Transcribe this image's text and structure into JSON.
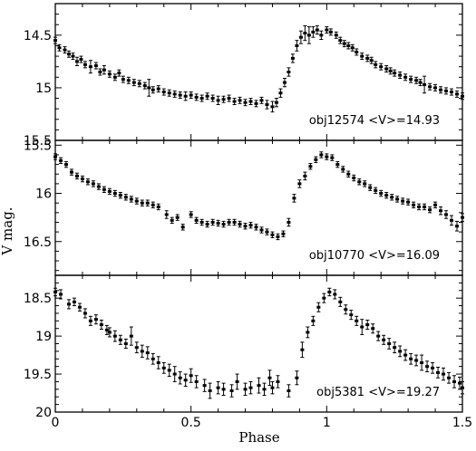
{
  "chart_data": {
    "type": "scatter",
    "xlabel": "Phase",
    "ylabel": "V mag.",
    "xlim": [
      0,
      1.5
    ],
    "xticks": [
      0,
      0.5,
      1,
      1.5
    ],
    "xtick_labels": [
      "0",
      "0.5",
      "1",
      "1.5"
    ],
    "panels": [
      {
        "annotation": "obj12574 <V>=14.93",
        "ylim": [
          15.5,
          14.2
        ],
        "yticks": [
          14.5,
          15,
          15.5
        ],
        "ytick_labels": [
          "14.5",
          "15",
          "15.5"
        ],
        "x": [
          0.0,
          0.015,
          0.035,
          0.05,
          0.065,
          0.08,
          0.095,
          0.11,
          0.13,
          0.15,
          0.165,
          0.18,
          0.2,
          0.22,
          0.235,
          0.25,
          0.27,
          0.29,
          0.31,
          0.33,
          0.345,
          0.36,
          0.38,
          0.4,
          0.42,
          0.44,
          0.46,
          0.48,
          0.5,
          0.52,
          0.54,
          0.56,
          0.58,
          0.6,
          0.62,
          0.64,
          0.66,
          0.68,
          0.7,
          0.72,
          0.74,
          0.76,
          0.78,
          0.8,
          0.815,
          0.83,
          0.845,
          0.86,
          0.875,
          0.89,
          0.905,
          0.92,
          0.935,
          0.95,
          0.965,
          0.98,
          1.0,
          1.015,
          1.035,
          1.05,
          1.065,
          1.08,
          1.095,
          1.11,
          1.13,
          1.15,
          1.165,
          1.18,
          1.2,
          1.22,
          1.235,
          1.25,
          1.27,
          1.29,
          1.31,
          1.33,
          1.345,
          1.36,
          1.38,
          1.4,
          1.42,
          1.44,
          1.46,
          1.48,
          1.5
        ],
        "y": [
          14.55,
          14.62,
          14.64,
          14.68,
          14.7,
          14.75,
          14.73,
          14.78,
          14.8,
          14.79,
          14.85,
          14.83,
          14.87,
          14.9,
          14.86,
          14.92,
          14.93,
          14.95,
          14.96,
          14.98,
          15.0,
          15.02,
          15.01,
          15.04,
          15.05,
          15.06,
          15.07,
          15.08,
          15.07,
          15.09,
          15.1,
          15.08,
          15.1,
          15.12,
          15.11,
          15.1,
          15.13,
          15.12,
          15.14,
          15.13,
          15.15,
          15.12,
          15.16,
          15.18,
          15.14,
          15.05,
          14.95,
          14.85,
          14.72,
          14.6,
          14.52,
          14.48,
          14.5,
          14.47,
          14.45,
          14.5,
          14.45,
          14.47,
          14.5,
          14.55,
          14.58,
          14.6,
          14.62,
          14.66,
          14.7,
          14.72,
          14.74,
          14.78,
          14.8,
          14.82,
          14.84,
          14.86,
          14.88,
          14.9,
          14.92,
          14.93,
          14.95,
          14.97,
          14.99,
          15.0,
          15.02,
          15.03,
          15.04,
          15.06,
          15.08
        ],
        "yerr": [
          0.03,
          0.03,
          0.03,
          0.03,
          0.03,
          0.04,
          0.03,
          0.03,
          0.06,
          0.03,
          0.03,
          0.04,
          0.03,
          0.03,
          0.03,
          0.03,
          0.03,
          0.03,
          0.03,
          0.03,
          0.08,
          0.03,
          0.03,
          0.03,
          0.03,
          0.03,
          0.03,
          0.04,
          0.03,
          0.03,
          0.03,
          0.03,
          0.03,
          0.04,
          0.03,
          0.03,
          0.03,
          0.03,
          0.03,
          0.03,
          0.03,
          0.03,
          0.04,
          0.05,
          0.04,
          0.04,
          0.04,
          0.04,
          0.04,
          0.05,
          0.06,
          0.07,
          0.08,
          0.05,
          0.04,
          0.04,
          0.03,
          0.03,
          0.03,
          0.03,
          0.03,
          0.03,
          0.03,
          0.03,
          0.03,
          0.03,
          0.03,
          0.03,
          0.03,
          0.03,
          0.03,
          0.03,
          0.03,
          0.03,
          0.03,
          0.03,
          0.03,
          0.08,
          0.03,
          0.03,
          0.03,
          0.03,
          0.03,
          0.03,
          0.03
        ]
      },
      {
        "annotation": "obj10770 <V>=16.09",
        "ylim": [
          16.85,
          15.45
        ],
        "yticks": [
          15.5,
          16,
          16.5
        ],
        "ytick_labels": [
          "15.5",
          "16",
          "16.5"
        ],
        "x": [
          0.0,
          0.02,
          0.04,
          0.06,
          0.08,
          0.1,
          0.12,
          0.14,
          0.16,
          0.18,
          0.2,
          0.22,
          0.24,
          0.26,
          0.28,
          0.3,
          0.32,
          0.34,
          0.36,
          0.38,
          0.41,
          0.43,
          0.45,
          0.47,
          0.5,
          0.52,
          0.54,
          0.56,
          0.58,
          0.6,
          0.62,
          0.64,
          0.66,
          0.68,
          0.7,
          0.72,
          0.74,
          0.76,
          0.78,
          0.8,
          0.82,
          0.84,
          0.86,
          0.88,
          0.9,
          0.92,
          0.94,
          0.96,
          0.98,
          1.0,
          1.02,
          1.04,
          1.06,
          1.08,
          1.1,
          1.12,
          1.14,
          1.16,
          1.18,
          1.2,
          1.22,
          1.24,
          1.26,
          1.28,
          1.3,
          1.32,
          1.34,
          1.36,
          1.38,
          1.4,
          1.42,
          1.44,
          1.46,
          1.48,
          1.5
        ],
        "y": [
          15.62,
          15.66,
          15.7,
          15.78,
          15.82,
          15.85,
          15.88,
          15.9,
          15.93,
          15.96,
          15.98,
          16.0,
          16.02,
          16.04,
          16.06,
          16.08,
          16.1,
          16.1,
          16.12,
          16.14,
          16.22,
          16.28,
          16.25,
          16.35,
          16.22,
          16.28,
          16.3,
          16.32,
          16.3,
          16.31,
          16.32,
          16.3,
          16.3,
          16.32,
          16.34,
          16.33,
          16.35,
          16.38,
          16.4,
          16.43,
          16.45,
          16.42,
          16.3,
          16.05,
          15.9,
          15.82,
          15.72,
          15.65,
          15.6,
          15.62,
          15.63,
          15.7,
          15.75,
          15.8,
          15.84,
          15.88,
          15.9,
          15.94,
          15.97,
          16.0,
          16.02,
          16.04,
          16.06,
          16.08,
          16.09,
          16.12,
          16.14,
          16.14,
          16.17,
          16.12,
          16.18,
          16.22,
          16.28,
          16.34,
          16.25
        ],
        "yerr": [
          0.03,
          0.03,
          0.03,
          0.03,
          0.03,
          0.03,
          0.03,
          0.03,
          0.03,
          0.03,
          0.03,
          0.03,
          0.03,
          0.03,
          0.03,
          0.03,
          0.03,
          0.03,
          0.03,
          0.03,
          0.04,
          0.03,
          0.03,
          0.03,
          0.03,
          0.03,
          0.03,
          0.03,
          0.03,
          0.03,
          0.03,
          0.03,
          0.03,
          0.03,
          0.03,
          0.03,
          0.03,
          0.03,
          0.03,
          0.03,
          0.03,
          0.03,
          0.04,
          0.04,
          0.04,
          0.04,
          0.03,
          0.03,
          0.03,
          0.03,
          0.03,
          0.03,
          0.03,
          0.03,
          0.03,
          0.03,
          0.03,
          0.03,
          0.03,
          0.03,
          0.03,
          0.03,
          0.03,
          0.03,
          0.03,
          0.03,
          0.03,
          0.03,
          0.03,
          0.03,
          0.04,
          0.04,
          0.05,
          0.05,
          0.04
        ]
      },
      {
        "annotation": "obj5381 <V>=19.27",
        "ylim": [
          20.0,
          18.2
        ],
        "yticks": [
          18.5,
          19,
          19.5,
          20
        ],
        "ytick_labels": [
          "18.5",
          "19",
          "19.5",
          "20"
        ],
        "x": [
          0.0,
          0.02,
          0.05,
          0.07,
          0.09,
          0.11,
          0.13,
          0.15,
          0.17,
          0.19,
          0.2,
          0.22,
          0.24,
          0.26,
          0.28,
          0.3,
          0.32,
          0.34,
          0.36,
          0.38,
          0.4,
          0.42,
          0.44,
          0.46,
          0.48,
          0.5,
          0.52,
          0.55,
          0.57,
          0.6,
          0.62,
          0.65,
          0.67,
          0.7,
          0.72,
          0.75,
          0.77,
          0.79,
          0.8,
          0.82,
          0.86,
          0.89,
          0.91,
          0.93,
          0.95,
          0.97,
          0.99,
          1.01,
          1.03,
          1.05,
          1.07,
          1.09,
          1.11,
          1.13,
          1.15,
          1.17,
          1.19,
          1.21,
          1.23,
          1.25,
          1.27,
          1.29,
          1.31,
          1.33,
          1.35,
          1.37,
          1.39,
          1.41,
          1.43,
          1.45,
          1.47,
          1.49,
          1.5
        ],
        "y": [
          18.42,
          18.45,
          18.58,
          18.55,
          18.62,
          18.7,
          18.8,
          18.78,
          18.85,
          18.92,
          18.95,
          19.0,
          19.05,
          19.1,
          19.0,
          19.15,
          19.2,
          19.22,
          19.3,
          19.35,
          19.42,
          19.45,
          19.5,
          19.55,
          19.58,
          19.52,
          19.6,
          19.65,
          19.72,
          19.68,
          19.7,
          19.72,
          19.6,
          19.7,
          19.68,
          19.65,
          19.7,
          19.55,
          19.68,
          19.6,
          19.72,
          19.55,
          19.18,
          18.95,
          18.8,
          18.62,
          18.5,
          18.42,
          18.45,
          18.55,
          18.65,
          18.72,
          18.8,
          18.88,
          18.85,
          18.9,
          19.0,
          19.05,
          19.1,
          19.15,
          19.2,
          19.25,
          19.3,
          19.32,
          19.35,
          19.4,
          19.42,
          19.48,
          19.5,
          19.55,
          19.6,
          19.62,
          19.68
        ],
        "yerr": [
          0.05,
          0.06,
          0.06,
          0.05,
          0.05,
          0.06,
          0.06,
          0.06,
          0.06,
          0.06,
          0.06,
          0.07,
          0.06,
          0.06,
          0.12,
          0.07,
          0.08,
          0.08,
          0.07,
          0.08,
          0.07,
          0.08,
          0.1,
          0.08,
          0.08,
          0.09,
          0.08,
          0.08,
          0.1,
          0.08,
          0.08,
          0.08,
          0.1,
          0.08,
          0.08,
          0.1,
          0.08,
          0.1,
          0.08,
          0.08,
          0.08,
          0.09,
          0.1,
          0.07,
          0.06,
          0.06,
          0.06,
          0.05,
          0.06,
          0.06,
          0.06,
          0.06,
          0.06,
          0.1,
          0.06,
          0.06,
          0.06,
          0.06,
          0.07,
          0.07,
          0.07,
          0.07,
          0.07,
          0.07,
          0.1,
          0.07,
          0.07,
          0.07,
          0.08,
          0.07,
          0.08,
          0.08,
          0.08
        ]
      }
    ]
  }
}
